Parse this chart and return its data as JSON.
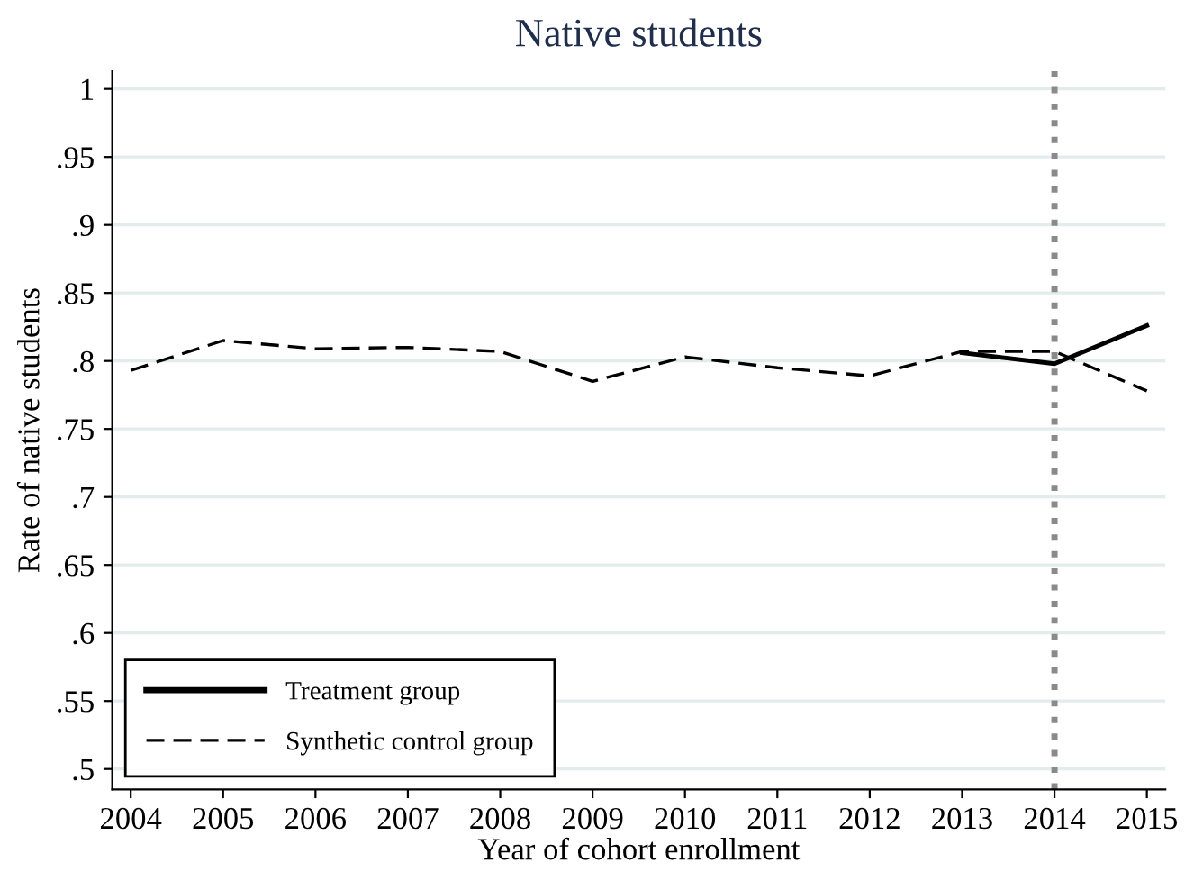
{
  "chart_data": {
    "type": "line",
    "title": "Native students",
    "xlabel": "Year of cohort enrollment",
    "ylabel": "Rate of native students",
    "x": [
      2004,
      2005,
      2006,
      2007,
      2008,
      2009,
      2010,
      2011,
      2012,
      2013,
      2014,
      2015
    ],
    "series": [
      {
        "name": "Treatment group",
        "color": "#000000",
        "line_style": "solid",
        "x": [
          2013,
          2014,
          2015
        ],
        "values": [
          0.806,
          0.798,
          0.826
        ]
      },
      {
        "name": "Synthetic control group",
        "color": "#000000",
        "line_style": "dashed",
        "values": [
          0.793,
          0.815,
          0.809,
          0.81,
          0.807,
          0.785,
          0.803,
          0.795,
          0.789,
          0.807,
          0.807,
          0.778
        ]
      }
    ],
    "xlim": [
      2003.8,
      2015.2
    ],
    "xticks": [
      2004,
      2005,
      2006,
      2007,
      2008,
      2009,
      2010,
      2011,
      2012,
      2013,
      2014,
      2015
    ],
    "ylim": [
      0.485,
      1.013
    ],
    "yticks": [
      {
        "value": 0.5,
        "label": ".5"
      },
      {
        "value": 0.55,
        "label": ".55"
      },
      {
        "value": 0.6,
        "label": ".6"
      },
      {
        "value": 0.65,
        "label": ".65"
      },
      {
        "value": 0.7,
        "label": ".7"
      },
      {
        "value": 0.75,
        "label": ".75"
      },
      {
        "value": 0.8,
        "label": ".8"
      },
      {
        "value": 0.85,
        "label": ".85"
      },
      {
        "value": 0.9,
        "label": ".9"
      },
      {
        "value": 0.95,
        "label": ".95"
      },
      {
        "value": 1,
        "label": "1"
      }
    ],
    "ref_lines": [
      {
        "axis": "x",
        "value": 2014,
        "label": null,
        "color": "#8a8a8a",
        "line_style": "dotted"
      }
    ],
    "grid": "y",
    "legend": "bottom left",
    "marker": "none"
  }
}
